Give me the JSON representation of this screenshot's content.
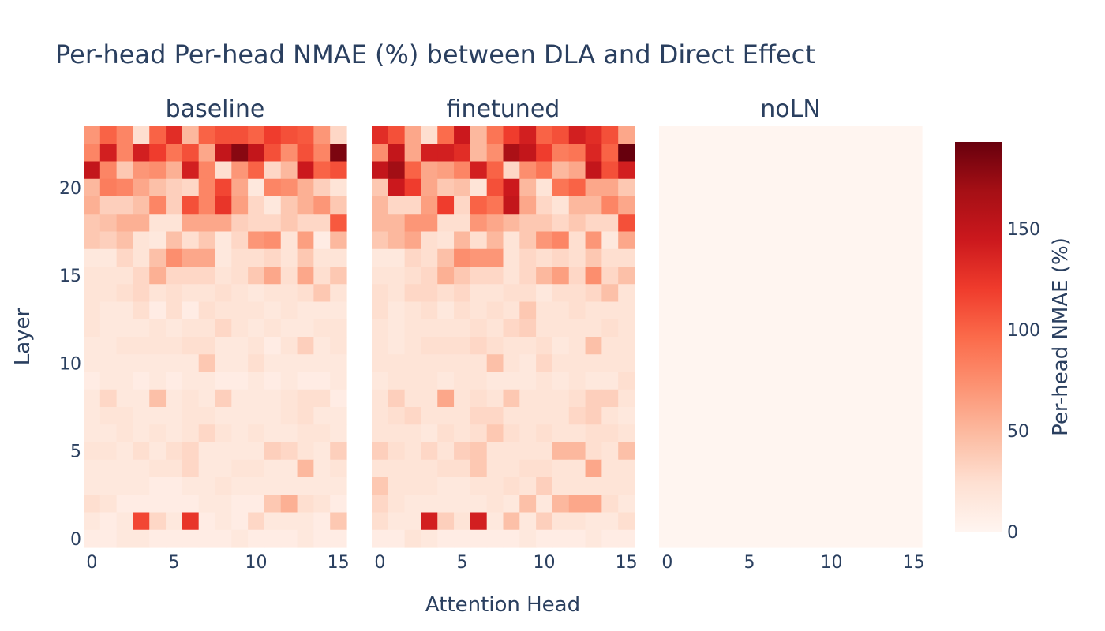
{
  "chart_data": {
    "type": "heatmap",
    "title": "Per-head Per-head NMAE (%) between DLA and Direct Effect",
    "xlabel": "Attention Head",
    "ylabel": "Layer",
    "x_ticks": [
      "0",
      "5",
      "10",
      "15"
    ],
    "y_ticks": [
      "0",
      "5",
      "10",
      "15",
      "20"
    ],
    "colorbar": {
      "title": "Per-head NMAE (%)",
      "ticks": [
        "0",
        "50",
        "100",
        "150"
      ],
      "range": [
        0,
        193
      ],
      "colorscale": [
        "#fff5f0",
        "#fee0d2",
        "#fcbba1",
        "#fc9272",
        "#fb6a4a",
        "#ef3b2c",
        "#cb181d",
        "#a50f15",
        "#67000d"
      ]
    },
    "n_heads": 16,
    "n_layers": 24,
    "panels": [
      {
        "name": "baseline",
        "rows_top_to_bottom": [
          [
            70,
            100,
            80,
            25,
            100,
            130,
            50,
            100,
            110,
            110,
            100,
            120,
            110,
            105,
            70,
            30
          ],
          [
            80,
            140,
            80,
            140,
            120,
            90,
            110,
            60,
            150,
            180,
            150,
            110,
            75,
            110,
            80,
            185
          ],
          [
            150,
            80,
            40,
            70,
            75,
            55,
            140,
            80,
            25,
            70,
            100,
            30,
            50,
            145,
            100,
            110
          ],
          [
            50,
            85,
            80,
            60,
            45,
            35,
            30,
            80,
            115,
            60,
            15,
            80,
            75,
            55,
            35,
            20
          ],
          [
            55,
            35,
            35,
            45,
            80,
            35,
            110,
            80,
            125,
            65,
            30,
            15,
            40,
            55,
            70,
            40
          ],
          [
            40,
            45,
            55,
            55,
            20,
            20,
            60,
            60,
            60,
            35,
            30,
            30,
            40,
            30,
            30,
            105
          ],
          [
            40,
            35,
            45,
            20,
            15,
            45,
            25,
            40,
            15,
            30,
            70,
            75,
            20,
            65,
            10,
            50
          ],
          [
            15,
            15,
            30,
            20,
            45,
            75,
            60,
            60,
            15,
            25,
            25,
            30,
            20,
            40,
            20,
            20
          ],
          [
            20,
            20,
            20,
            30,
            55,
            30,
            30,
            30,
            20,
            25,
            40,
            60,
            25,
            60,
            25,
            40
          ],
          [
            20,
            20,
            25,
            30,
            20,
            25,
            20,
            20,
            25,
            20,
            15,
            20,
            20,
            25,
            40,
            20
          ],
          [
            20,
            15,
            15,
            25,
            10,
            25,
            10,
            25,
            20,
            20,
            20,
            15,
            20,
            15,
            15,
            15
          ],
          [
            20,
            15,
            15,
            15,
            20,
            15,
            20,
            20,
            30,
            20,
            15,
            20,
            15,
            15,
            20,
            20
          ],
          [
            15,
            15,
            20,
            20,
            20,
            20,
            25,
            25,
            15,
            15,
            20,
            10,
            20,
            35,
            15,
            20
          ],
          [
            15,
            15,
            15,
            15,
            15,
            15,
            15,
            40,
            15,
            15,
            25,
            15,
            15,
            15,
            15,
            15
          ],
          [
            10,
            15,
            15,
            10,
            15,
            10,
            15,
            15,
            10,
            10,
            15,
            10,
            15,
            10,
            10,
            15
          ],
          [
            15,
            30,
            15,
            15,
            45,
            15,
            20,
            15,
            35,
            15,
            15,
            15,
            20,
            25,
            25,
            10
          ],
          [
            15,
            20,
            20,
            15,
            15,
            15,
            20,
            20,
            15,
            15,
            15,
            15,
            20,
            25,
            15,
            15
          ],
          [
            15,
            15,
            20,
            15,
            20,
            15,
            20,
            30,
            20,
            15,
            20,
            15,
            15,
            20,
            20,
            15
          ],
          [
            20,
            20,
            15,
            25,
            15,
            25,
            30,
            15,
            15,
            15,
            15,
            35,
            30,
            20,
            15,
            35
          ],
          [
            15,
            15,
            15,
            15,
            20,
            20,
            30,
            15,
            15,
            20,
            20,
            15,
            15,
            50,
            15,
            20
          ],
          [
            15,
            15,
            15,
            15,
            10,
            10,
            15,
            15,
            20,
            15,
            15,
            15,
            15,
            15,
            15,
            15
          ],
          [
            25,
            20,
            10,
            10,
            10,
            10,
            10,
            15,
            15,
            10,
            10,
            40,
            55,
            25,
            20,
            10
          ],
          [
            15,
            10,
            15,
            115,
            30,
            15,
            125,
            10,
            15,
            10,
            30,
            15,
            15,
            15,
            10,
            40
          ],
          [
            10,
            10,
            15,
            15,
            10,
            10,
            10,
            10,
            10,
            15,
            10,
            10,
            10,
            15,
            10,
            10
          ]
        ]
      },
      {
        "name": "finetuned",
        "rows_top_to_bottom": [
          [
            130,
            110,
            60,
            25,
            95,
            145,
            50,
            90,
            120,
            140,
            100,
            110,
            140,
            130,
            110,
            60
          ],
          [
            75,
            150,
            60,
            140,
            140,
            130,
            50,
            75,
            165,
            150,
            120,
            85,
            90,
            135,
            100,
            193
          ],
          [
            150,
            170,
            100,
            60,
            65,
            80,
            140,
            100,
            30,
            75,
            90,
            50,
            60,
            150,
            110,
            140
          ],
          [
            40,
            145,
            120,
            60,
            40,
            45,
            20,
            110,
            145,
            50,
            20,
            90,
            100,
            60,
            60,
            40
          ],
          [
            50,
            30,
            30,
            65,
            120,
            30,
            100,
            90,
            150,
            60,
            30,
            20,
            50,
            50,
            80,
            60
          ],
          [
            50,
            50,
            70,
            70,
            25,
            25,
            70,
            60,
            50,
            40,
            40,
            30,
            40,
            30,
            30,
            110
          ],
          [
            40,
            50,
            60,
            25,
            20,
            50,
            25,
            50,
            20,
            40,
            70,
            80,
            25,
            70,
            15,
            60
          ],
          [
            15,
            15,
            30,
            25,
            45,
            75,
            70,
            70,
            20,
            30,
            25,
            30,
            25,
            40,
            25,
            25
          ],
          [
            20,
            20,
            25,
            30,
            55,
            40,
            30,
            30,
            20,
            30,
            50,
            65,
            30,
            75,
            30,
            45
          ],
          [
            25,
            20,
            30,
            30,
            25,
            30,
            20,
            20,
            25,
            25,
            15,
            25,
            25,
            30,
            45,
            20
          ],
          [
            25,
            15,
            20,
            25,
            15,
            25,
            20,
            25,
            20,
            40,
            20,
            20,
            25,
            20,
            20,
            20
          ],
          [
            20,
            15,
            20,
            20,
            20,
            20,
            25,
            20,
            30,
            35,
            20,
            20,
            20,
            20,
            25,
            20
          ],
          [
            20,
            15,
            20,
            25,
            25,
            25,
            30,
            25,
            20,
            20,
            25,
            15,
            20,
            45,
            20,
            20
          ],
          [
            20,
            20,
            20,
            20,
            20,
            20,
            20,
            45,
            20,
            15,
            30,
            20,
            20,
            20,
            20,
            20
          ],
          [
            15,
            20,
            20,
            20,
            15,
            20,
            20,
            15,
            15,
            15,
            20,
            15,
            20,
            15,
            15,
            25
          ],
          [
            20,
            35,
            20,
            20,
            60,
            20,
            25,
            20,
            40,
            20,
            20,
            20,
            25,
            35,
            35,
            20
          ],
          [
            20,
            25,
            30,
            20,
            20,
            20,
            30,
            30,
            20,
            20,
            20,
            20,
            30,
            35,
            20,
            15
          ],
          [
            20,
            20,
            20,
            15,
            25,
            20,
            25,
            40,
            25,
            20,
            25,
            20,
            20,
            25,
            25,
            20
          ],
          [
            35,
            25,
            20,
            30,
            20,
            35,
            40,
            20,
            20,
            20,
            20,
            50,
            50,
            25,
            20,
            45
          ],
          [
            20,
            20,
            20,
            20,
            25,
            25,
            40,
            20,
            20,
            25,
            25,
            20,
            20,
            60,
            20,
            20
          ],
          [
            40,
            20,
            20,
            20,
            15,
            15,
            20,
            20,
            25,
            20,
            35,
            20,
            20,
            20,
            20,
            20
          ],
          [
            30,
            20,
            15,
            15,
            15,
            15,
            15,
            20,
            15,
            45,
            15,
            50,
            60,
            60,
            25,
            15
          ],
          [
            25,
            15,
            15,
            140,
            35,
            20,
            140,
            15,
            45,
            15,
            35,
            20,
            20,
            15,
            15,
            25
          ],
          [
            10,
            10,
            20,
            15,
            10,
            10,
            10,
            10,
            10,
            15,
            10,
            10,
            10,
            15,
            10,
            10
          ]
        ]
      },
      {
        "name": "noLN",
        "uniform_value": 0
      }
    ]
  }
}
